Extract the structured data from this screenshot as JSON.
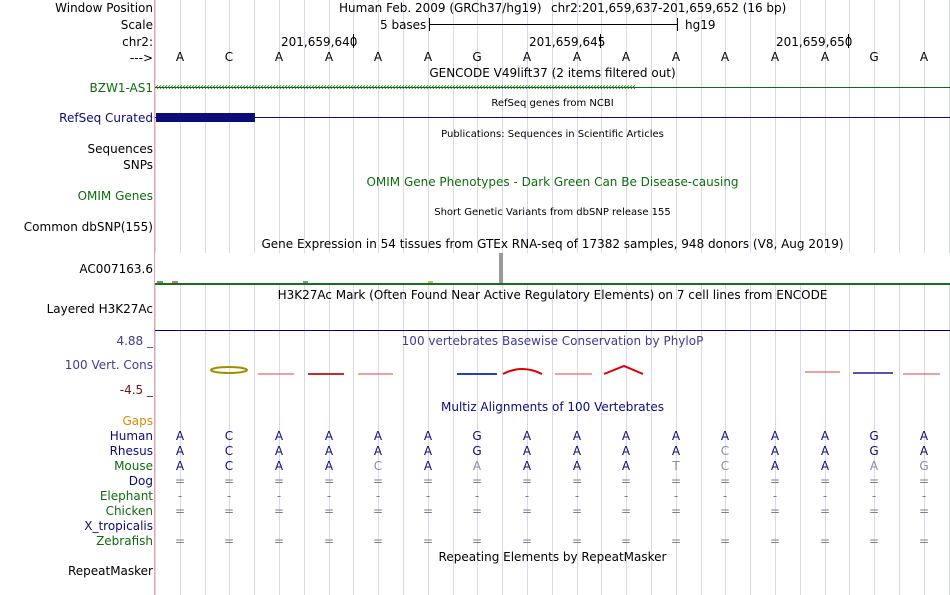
{
  "header": {
    "window_position_label": "Window Position",
    "assembly": "Human Feb. 2009 (GRCh37/hg19)",
    "position": "chr2:201,659,637-201,659,652 (16 bp)",
    "scale_label": "Scale",
    "scale_value": "5 bases",
    "scale_db": "hg19",
    "chrom_label": "chr2:",
    "coords": [
      "201,659,640",
      "201,659,645",
      "201,659,650"
    ],
    "strand_label": "--->"
  },
  "reference_bases": [
    "A",
    "C",
    "A",
    "A",
    "A",
    "A",
    "G",
    "A",
    "A",
    "A",
    "A",
    "A",
    "A",
    "A",
    "G",
    "A"
  ],
  "tracks": {
    "gencode": {
      "title": "GENCODE V49lift37 (2 items filtered out)",
      "gene": "BZW1-AS1",
      "color": "#0f6b0f"
    },
    "refseq": {
      "title": "RefSeq genes from NCBI",
      "label": "RefSeq Curated",
      "color": "#0c0c78"
    },
    "publications": {
      "title": "Publications: Sequences in Scientific Articles",
      "labels": [
        "Sequences",
        "SNPs"
      ]
    },
    "omim": {
      "title": "OMIM Gene Phenotypes - Dark Green Can Be Disease-causing",
      "label": "OMIM Genes",
      "color": "#0f6b0f"
    },
    "dbsnp": {
      "title": "Short Genetic Variants from dbSNP release 155",
      "label": "Common dbSNP(155)"
    },
    "gtex": {
      "title": "Gene Expression in 54 tissues from GTEx RNA-seq of 17382 samples, 948 donors (V8, Aug 2019)",
      "label": "AC007163.6"
    },
    "h3k27ac": {
      "title": "H3K27Ac Mark (Often Found Near Active Regulatory Elements) on 7 cell lines from ENCODE",
      "label": "Layered H3K27Ac",
      "color": "#000080"
    },
    "phylop": {
      "title": "100 vertebrates Basewise Conservation by PhyloP",
      "label": "100 Vert. Cons",
      "max": "4.88 _",
      "min": "-4.5 _",
      "color": "#3c3c96",
      "min_color": "#6e1414"
    },
    "gaps": {
      "label": "Gaps",
      "color": "#d88a00"
    },
    "multiz": {
      "title": "Multiz Alignments of 100 Vertebrates",
      "color": "#0c0c78",
      "species": [
        {
          "name": "Human",
          "bases": [
            "A",
            "C",
            "A",
            "A",
            "A",
            "A",
            "G",
            "A",
            "A",
            "A",
            "A",
            "A",
            "A",
            "A",
            "G",
            "A"
          ],
          "color": "#0c0c78"
        },
        {
          "name": "Rhesus",
          "bases": [
            "A",
            "C",
            "A",
            "A",
            "A",
            "A",
            "G",
            "A",
            "A",
            "A",
            "A",
            "C",
            "A",
            "A",
            "G",
            "A"
          ],
          "color": "#0c0c78"
        },
        {
          "name": "Mouse",
          "bases": [
            "A",
            "C",
            "A",
            "A",
            "C",
            "A",
            "A",
            "A",
            "A",
            "A",
            "T",
            "C",
            "A",
            "A",
            "A",
            "G"
          ],
          "color": "#0f6b0f"
        },
        {
          "name": "Dog",
          "bases": [
            "=",
            "=",
            "=",
            "=",
            "=",
            "=",
            "=",
            "=",
            "=",
            "=",
            "=",
            "=",
            "=",
            "=",
            "=",
            "="
          ],
          "color": "#0c0c78"
        },
        {
          "name": "Elephant",
          "bases": [
            "-",
            "-",
            "-",
            "-",
            "-",
            "-",
            "-",
            "-",
            "-",
            "-",
            "-",
            "-",
            "-",
            "-",
            "-",
            "-"
          ],
          "color": "#0f6b0f"
        },
        {
          "name": "Chicken",
          "bases": [
            "=",
            "=",
            "=",
            "=",
            "=",
            "=",
            "=",
            "=",
            "=",
            "=",
            "=",
            "=",
            "=",
            "=",
            "=",
            "="
          ],
          "color": "#0f6b0f"
        },
        {
          "name": "X_tropicalis",
          "bases": [
            "",
            "",
            "",
            "",
            "",
            "",
            "",
            "",
            "",
            "",
            "",
            "",
            "",
            "",
            "",
            ""
          ],
          "color": "#0c0c78"
        },
        {
          "name": "Zebrafish",
          "bases": [
            "=",
            "=",
            "=",
            "=",
            "=",
            "=",
            "=",
            "=",
            "=",
            "=",
            "=",
            "=",
            "=",
            "=",
            "=",
            "="
          ],
          "color": "#0f6b0f"
        }
      ]
    },
    "repeatmasker": {
      "title": "Repeating Elements by RepeatMasker",
      "label": "RepeatMasker"
    }
  }
}
